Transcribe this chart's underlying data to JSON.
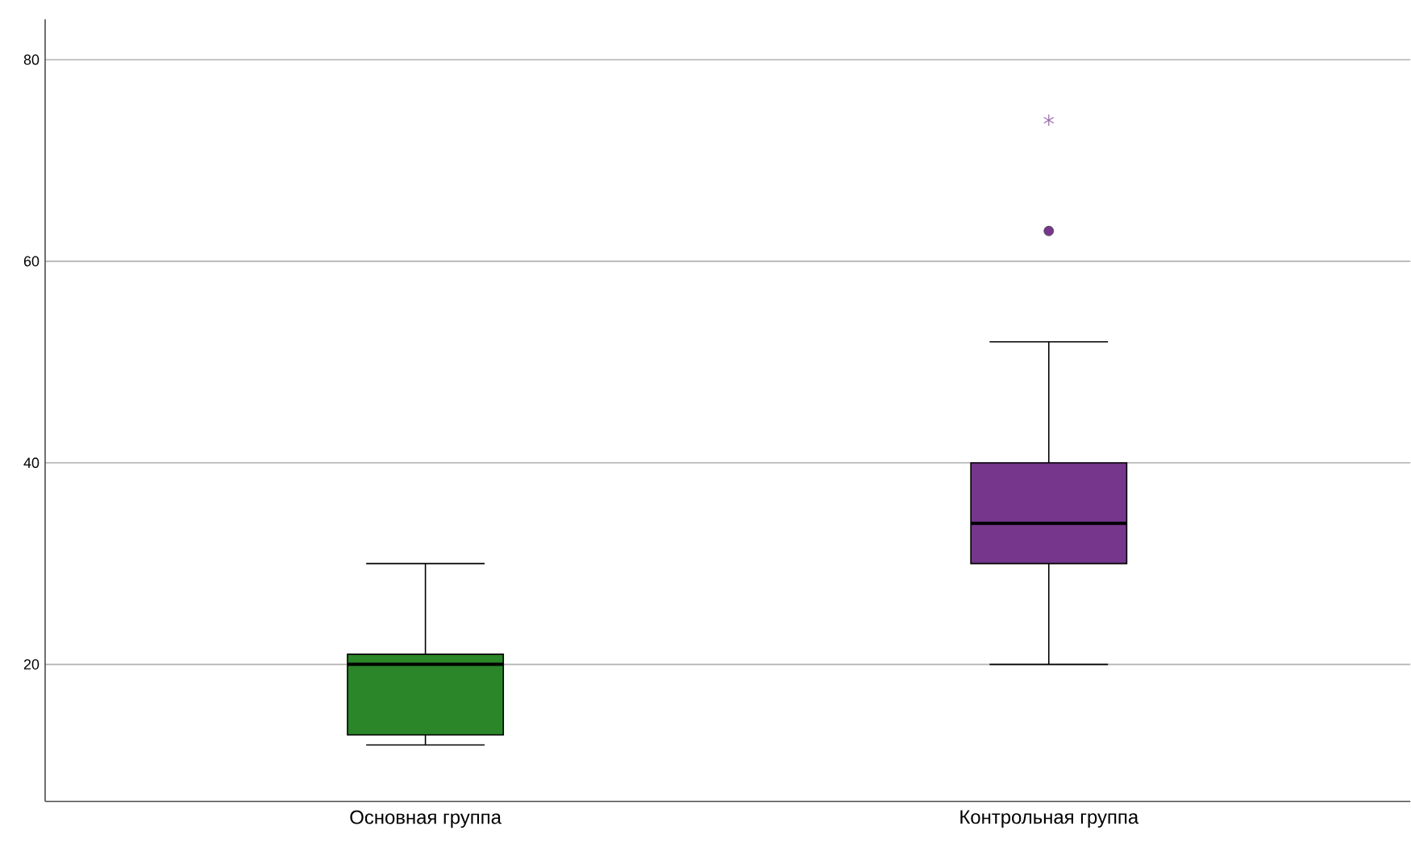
{
  "chart_data": {
    "type": "box",
    "categories": [
      "Основная группа",
      "Контрольная группа"
    ],
    "boxes": [
      {
        "low": 12,
        "q1": 13,
        "median": 20,
        "q3": 21,
        "high": 30
      },
      {
        "low": 20,
        "q1": 30,
        "median": 34,
        "q3": 40,
        "high": 52,
        "outliers": [
          63,
          74
        ]
      }
    ],
    "colors": [
      "#2a8629",
      "#76368c"
    ],
    "ylim": [
      6.4,
      84
    ],
    "yticks": [
      20,
      40,
      60,
      80
    ],
    "grid": "y"
  }
}
